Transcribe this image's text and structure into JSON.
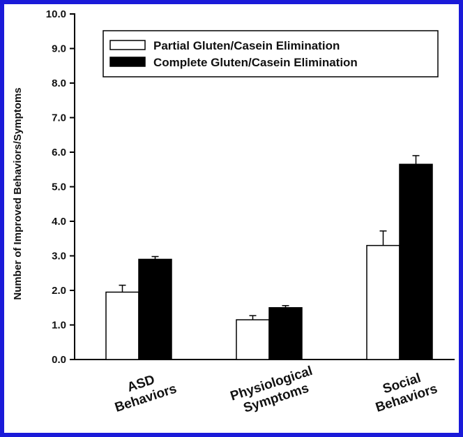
{
  "chart_data": {
    "type": "bar",
    "categories": [
      [
        "ASD",
        "Behaviors"
      ],
      [
        "Physiological",
        "Symptoms"
      ],
      [
        "Social",
        "Behaviors"
      ]
    ],
    "series": [
      {
        "name": "Partial Gluten/Casein Elimination",
        "values": [
          1.95,
          1.15,
          3.3
        ],
        "errors": [
          0.2,
          0.12,
          0.42
        ],
        "color": "#ffffff"
      },
      {
        "name": "Complete Gluten/Casein Elimination",
        "values": [
          2.9,
          1.5,
          5.65
        ],
        "errors": [
          0.08,
          0.06,
          0.25
        ],
        "color": "#000000"
      }
    ],
    "title": "",
    "xlabel": "",
    "ylabel": "Number of Improved Behaviors/Symptoms",
    "ylim": [
      0,
      10
    ],
    "yticks": [
      "0.0",
      "1.0",
      "2.0",
      "3.0",
      "4.0",
      "5.0",
      "6.0",
      "7.0",
      "8.0",
      "9.0",
      "10.0"
    ],
    "legend_position": "top-right",
    "grid": false
  },
  "colors": {
    "frame": "#1a1ad9",
    "axis": "#000000"
  }
}
